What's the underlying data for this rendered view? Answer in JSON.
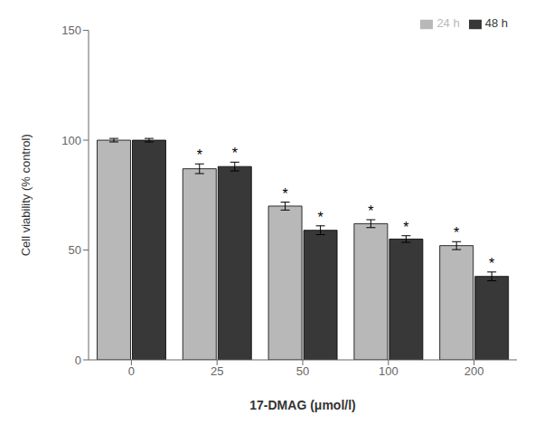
{
  "chart_data": {
    "type": "bar",
    "xlabel": "17-DMAG (μmol/l)",
    "ylabel": "Cell viability (% control)",
    "categories": [
      "0",
      "25",
      "50",
      "100",
      "200"
    ],
    "series": [
      {
        "name": "24 h",
        "color": "#b8b8b8",
        "values": [
          100,
          87,
          70,
          62,
          52
        ],
        "errors": [
          0.8,
          2.2,
          1.8,
          1.8,
          1.8
        ]
      },
      {
        "name": "48 h",
        "color": "#383838",
        "values": [
          100,
          88,
          59,
          55,
          38
        ],
        "errors": [
          0.8,
          2.0,
          2.0,
          1.5,
          2.0
        ]
      }
    ],
    "annotations": [
      {
        "text": "*",
        "series": "24 h",
        "category": "25"
      },
      {
        "text": "*",
        "series": "24 h",
        "category": "50"
      },
      {
        "text": "*",
        "series": "24 h",
        "category": "100"
      },
      {
        "text": "*",
        "series": "24 h",
        "category": "200"
      },
      {
        "text": "*",
        "series": "48 h",
        "category": "25"
      },
      {
        "text": "*",
        "series": "48 h",
        "category": "50"
      },
      {
        "text": "*",
        "series": "48 h",
        "category": "100"
      },
      {
        "text": "*",
        "series": "48 h",
        "category": "200"
      }
    ],
    "ylim": [
      0,
      150
    ],
    "yticks": [
      0,
      50,
      100,
      150
    ],
    "grid": false,
    "legend": "upper right"
  }
}
